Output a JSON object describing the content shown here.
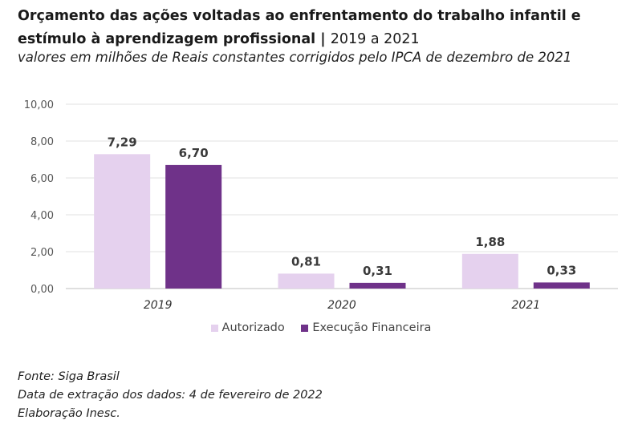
{
  "header": {
    "title": "Orçamento das ações voltadas ao enfrentamento do trabalho infantil e estímulo à aprendizagem profissional |",
    "title_light": "2019 a 2021",
    "subtitle": "valores em milhões de Reais constantes corrigidos pelo IPCA de dezembro de 2021"
  },
  "chart_data": {
    "type": "bar",
    "categories": [
      "2019",
      "2020",
      "2021"
    ],
    "series": [
      {
        "name": "Autorizado",
        "values": [
          7.29,
          0.81,
          1.88
        ],
        "labels": [
          "7,29",
          "0,81",
          "1,88"
        ],
        "color": "#e5d1ee"
      },
      {
        "name": "Execução Financeira",
        "values": [
          6.7,
          0.31,
          0.33
        ],
        "labels": [
          "6,70",
          "0,31",
          "0,33"
        ],
        "color": "#6f3289"
      }
    ],
    "yticks": [
      0,
      2,
      4,
      6,
      8,
      10
    ],
    "ytick_labels": [
      "0,00",
      "2,00",
      "4,00",
      "6,00",
      "8,00",
      "10,00"
    ],
    "ylim": [
      0,
      10
    ],
    "grid": true,
    "legend_position": "bottom",
    "xlabel": "",
    "ylabel": ""
  },
  "footer": {
    "source": "Fonte: Siga Brasil",
    "extraction": "Data de extração dos dados: 4 de fevereiro de 2022",
    "credit": "Elaboração Inesc."
  }
}
